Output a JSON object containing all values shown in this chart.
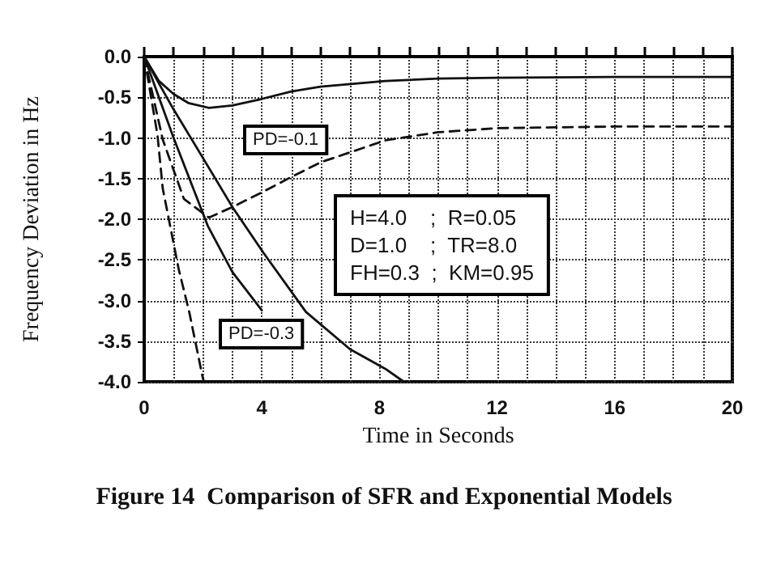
{
  "chart_data": {
    "type": "line",
    "title": "Figure 14  Comparison of SFR and Exponential Models",
    "xlabel": "Time in Seconds",
    "ylabel": "Frequency Deviation in Hz",
    "xlim": [
      0,
      20
    ],
    "xticks": [
      0,
      {
        "value": 1,
        "label": null
      },
      {
        "value": 2,
        "label": null
      },
      {
        "value": 3,
        "label": null
      },
      4,
      {
        "value": 5,
        "label": null
      },
      {
        "value": 6,
        "label": null
      },
      {
        "value": 7,
        "label": null
      },
      8,
      {
        "value": 9,
        "label": null
      },
      {
        "value": 10,
        "label": null
      },
      {
        "value": 11,
        "label": null
      },
      12,
      {
        "value": 13,
        "label": null
      },
      {
        "value": 14,
        "label": null
      },
      {
        "value": 15,
        "label": null
      },
      16,
      {
        "value": 17,
        "label": null
      },
      {
        "value": 18,
        "label": null
      },
      {
        "value": 19,
        "label": null
      },
      20
    ],
    "ylim": [
      -4,
      0
    ],
    "yticks": [
      {
        "value": 0,
        "label": "0.0"
      },
      -0.5,
      {
        "value": -1,
        "label": "-1.0"
      },
      -1.5,
      {
        "value": -2,
        "label": "-2.0"
      },
      -2.5,
      {
        "value": -3,
        "label": "-3.0"
      },
      -3.5,
      {
        "value": -4,
        "label": "-4.0"
      }
    ],
    "grid": true,
    "marker": "none",
    "series": [
      {
        "color": "#111111",
        "line_style": "solid",
        "x": [
          0,
          0.5,
          1,
          1.5,
          2.2,
          3,
          4,
          5,
          6,
          8.2,
          10,
          12,
          16,
          20
        ],
        "values": [
          0,
          -0.3,
          -0.46,
          -0.57,
          -0.63,
          -0.6,
          -0.52,
          -0.43,
          -0.37,
          -0.3,
          -0.27,
          -0.26,
          -0.25,
          -0.25
        ]
      },
      {
        "color": "#111111",
        "line_style": "solid",
        "x": [
          0,
          0.5,
          1,
          2.07,
          3,
          4.05,
          5.5,
          7,
          8.2,
          8.83
        ],
        "values": [
          0,
          -0.33,
          -0.65,
          -1.29,
          -1.85,
          -2.41,
          -3.14,
          -3.6,
          -3.84,
          -4
        ]
      },
      {
        "color": "#111111",
        "line_style": "solid",
        "x": [
          0,
          0.5,
          1,
          2.16,
          3,
          4
        ],
        "values": [
          0,
          -0.5,
          -1.0,
          -2.08,
          -2.65,
          -3.12
        ]
      },
      {
        "color": "#111111",
        "line_style": "dashed",
        "x": [
          0,
          0.63,
          1.35,
          2.2,
          3,
          4,
          4.95,
          6,
          8.2,
          10,
          12,
          16,
          20
        ],
        "values": [
          0,
          -1.02,
          -1.75,
          -1.98,
          -1.85,
          -1.67,
          -1.49,
          -1.3,
          -1.03,
          -0.93,
          -0.88,
          -0.86,
          -0.86
        ]
      },
      {
        "color": "#111111",
        "line_style": "dashed",
        "x": [
          0,
          0.45,
          0.63,
          1.17,
          1.53,
          1.98,
          2.03
        ],
        "values": [
          0,
          -0.96,
          -1.62,
          -2.61,
          -3.14,
          -3.93,
          -4
        ]
      }
    ],
    "annotations": [
      "PD=-0.1",
      "PD=-0.3",
      "H=4.0    ;  R=0.05",
      "D=1.0    ;  TR=8.0",
      "FH=0.3  ;  KM=0.95"
    ]
  }
}
